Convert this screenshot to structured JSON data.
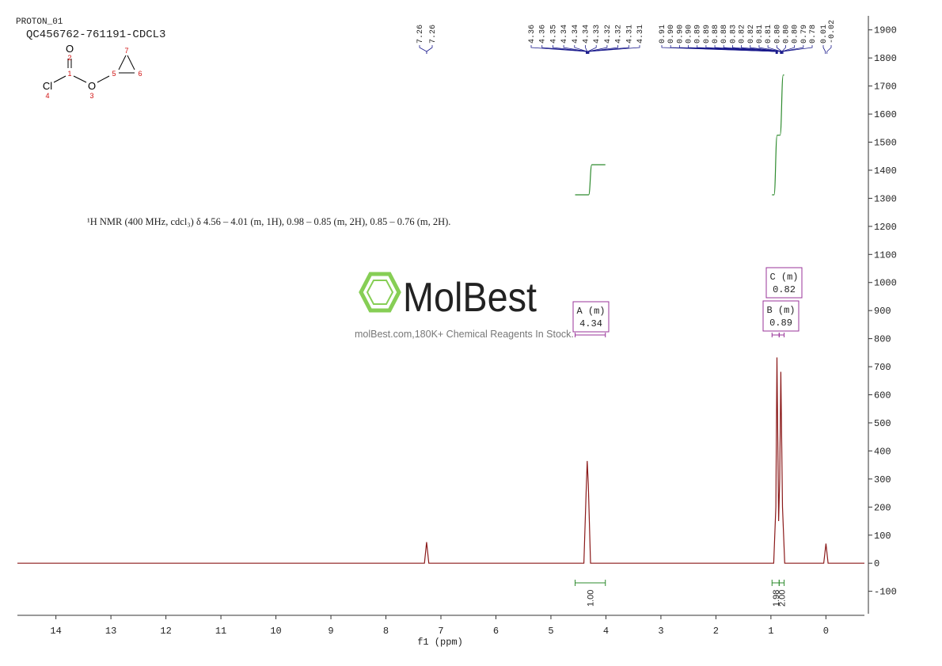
{
  "header": {
    "experiment": "PROTON_01",
    "sample": "QC456762-761191-CDCL3"
  },
  "structure": {
    "atoms": [
      "O",
      "Cl",
      "O"
    ],
    "atom_numbers": [
      2,
      1,
      4,
      3,
      5,
      7,
      6
    ]
  },
  "watermark": {
    "brand": "MolBest",
    "tagline": "molBest.com,180K+ Chemical Reagents In Stock."
  },
  "chart_data": {
    "type": "line",
    "description": "¹H NMR (400 MHz, cdcl₃) δ 4.56 – 4.01 (m, 1H), 0.98 – 0.85 (m, 2H), 0.85 – 0.76 (m, 2H).",
    "xlabel": "f1  (ppm)",
    "x": [
      14.7,
      7.3,
      7.26,
      7.22,
      4.4,
      4.36,
      4.34,
      4.32,
      4.28,
      0.95,
      0.91,
      0.89,
      0.86,
      0.84,
      0.82,
      0.79,
      0.75,
      0.04,
      0,
      -0.04,
      -0.7
    ],
    "values": [
      0,
      0,
      75,
      0,
      0,
      250,
      364,
      280,
      0,
      0,
      200,
      733,
      150,
      300,
      682,
      200,
      0,
      0,
      70,
      0,
      0
    ],
    "color": "#8b1a1a",
    "xlim": [
      14.7,
      -0.7
    ],
    "xticks": [
      14,
      13,
      12,
      11,
      10,
      9,
      8,
      7,
      6,
      5,
      4,
      3,
      2,
      1,
      0
    ],
    "ylim": [
      -180,
      1950
    ],
    "yticks": [
      -100,
      0,
      100,
      200,
      300,
      400,
      500,
      600,
      700,
      800,
      900,
      1000,
      1100,
      1200,
      1300,
      1400,
      1500,
      1600,
      1700,
      1800,
      1900
    ],
    "peak_labels": [
      [
        7.26,
        7.26
      ],
      [
        4.36,
        4.36,
        4.35,
        4.34,
        4.34,
        4.34,
        4.33,
        4.32,
        4.32,
        4.31,
        4.31
      ],
      [
        0.91,
        {
          "value": 0.9,
          "label": "0.90"
        },
        {
          "value": 0.9,
          "label": "0.90"
        },
        {
          "value": 0.9,
          "label": "0.90"
        },
        0.89,
        0.89,
        0.88,
        0.88,
        0.83,
        0.82,
        0.82,
        0.81,
        0.81,
        {
          "value": 0.8,
          "label": "0.80"
        },
        {
          "value": 0.8,
          "label": "0.80"
        },
        {
          "value": 0.8,
          "label": "0.80"
        },
        0.79,
        0.78
      ],
      [
        0.01,
        -0.02
      ]
    ],
    "peak_label_color": "#1a1a8c",
    "integrals": {
      "ranges": [
        [
          4.56,
          4.01
        ],
        [
          0.98,
          0.85
        ],
        [
          0.85,
          0.76
        ]
      ],
      "values": [
        1,
        1.98,
        2
      ],
      "value_labels": [
        "1.00",
        "1.98",
        "2.00"
      ],
      "color": "#2e8b2e"
    },
    "multiplets": {
      "labels": [
        "A (m)",
        "B (m)",
        "C (m)"
      ],
      "shifts": [
        4.34,
        0.89,
        0.82
      ],
      "color": "#993399"
    }
  }
}
